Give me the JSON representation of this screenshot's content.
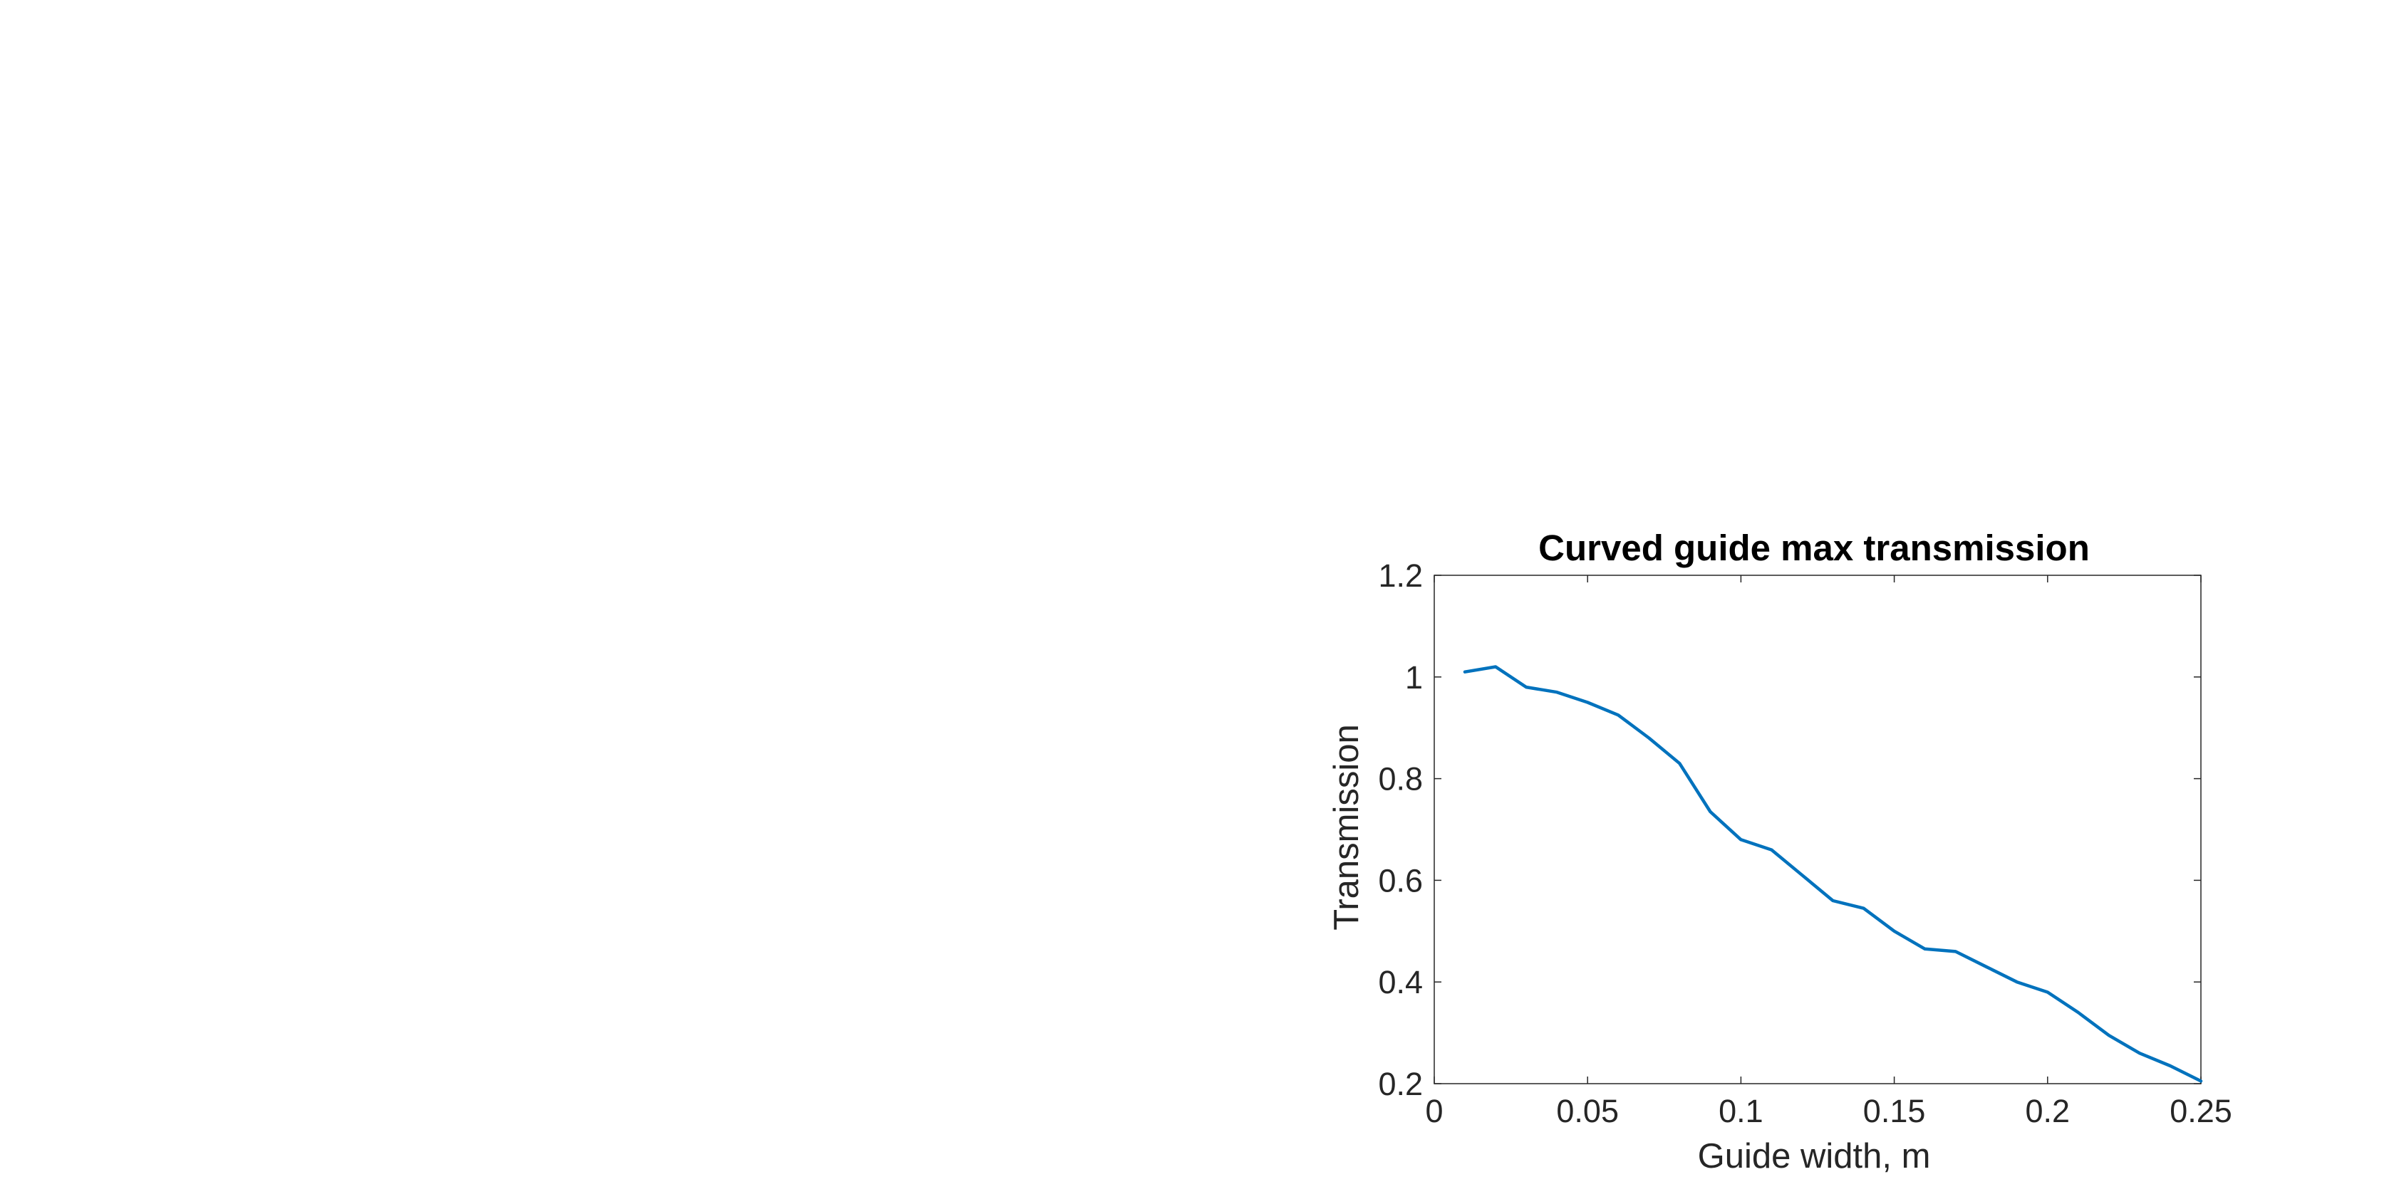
{
  "chart_data": {
    "type": "line",
    "title": "Curved guide max transmission",
    "xlabel": "Guide width, m",
    "ylabel": "Transmission",
    "xlim": [
      0,
      0.25
    ],
    "ylim": [
      0.2,
      1.2
    ],
    "xticks": [
      0,
      0.05,
      0.1,
      0.15,
      0.2,
      0.25
    ],
    "xtick_labels": [
      "0",
      "0.05",
      "0.1",
      "0.15",
      "0.2",
      "0.25"
    ],
    "yticks": [
      0.2,
      0.4,
      0.6,
      0.8,
      1,
      1.2
    ],
    "ytick_labels": [
      "0.2",
      "0.4",
      "0.6",
      "0.8",
      "1",
      "1.2"
    ],
    "grid": false,
    "line_color": "#0072BD",
    "axis_color": "#262626",
    "series": [
      {
        "x": [
          0.01,
          0.02,
          0.03,
          0.04,
          0.05,
          0.06,
          0.07,
          0.08,
          0.09,
          0.1,
          0.11,
          0.12,
          0.13,
          0.14,
          0.15,
          0.16,
          0.17,
          0.18,
          0.19,
          0.2,
          0.21,
          0.22,
          0.23,
          0.24,
          0.25
        ],
        "y": [
          1.01,
          1.02,
          0.98,
          0.97,
          0.95,
          0.925,
          0.88,
          0.83,
          0.735,
          0.68,
          0.66,
          0.61,
          0.56,
          0.545,
          0.5,
          0.465,
          0.46,
          0.43,
          0.4,
          0.38,
          0.34,
          0.295,
          0.26,
          0.235,
          0.205
        ]
      }
    ]
  }
}
